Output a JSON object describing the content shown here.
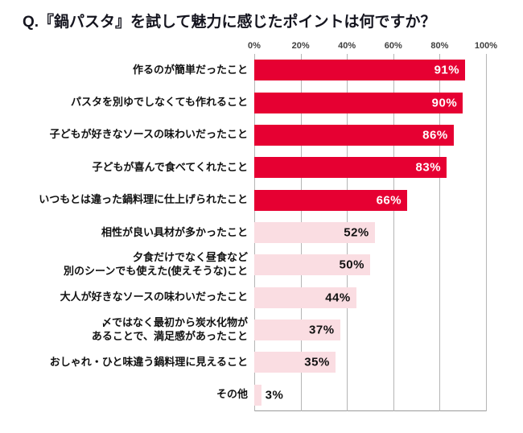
{
  "chart_data": {
    "type": "bar",
    "orientation": "horizontal",
    "title": "Q.『鍋パスタ』を試して魅力に感じたポイントは何ですか？",
    "categories": [
      "作るのが簡単だったこと",
      "パスタを別ゆでしなくても作れること",
      "子どもが好きなソースの味わいだったこと",
      "子どもが喜んで食べてくれたこと",
      "いつもとは違った鍋料理に仕上げられたこと",
      "相性が良い具材が多かったこと",
      "夕食だけでなく昼食など\n別のシーンでも使えた(使えそうな)こと",
      "大人が好きなソースの味わいだったこと",
      "〆ではなく最初から炭水化物が\nあることで、満足感があったこと",
      "おしゃれ・ひと味違う鍋料理に見えること",
      "その他"
    ],
    "values": [
      91,
      90,
      86,
      83,
      66,
      52,
      50,
      44,
      37,
      35,
      3
    ],
    "value_labels": [
      "91%",
      "90%",
      "86%",
      "83%",
      "66%",
      "52%",
      "50%",
      "44%",
      "37%",
      "35%",
      "3%"
    ],
    "xlim": [
      0,
      100
    ],
    "tick_labels": [
      "0%",
      "20%",
      "40%",
      "60%",
      "80%",
      "100%"
    ],
    "grid": true,
    "legend": false,
    "emphasis_threshold": 60,
    "outside_label_threshold": 6,
    "colors": {
      "bar_high": "#e60032",
      "bar_low": "#fadde2",
      "grid": "#b5b5b5",
      "value_on_high": "#ffffff",
      "value_on_low": "#111111",
      "title_text": "#15151f"
    }
  }
}
